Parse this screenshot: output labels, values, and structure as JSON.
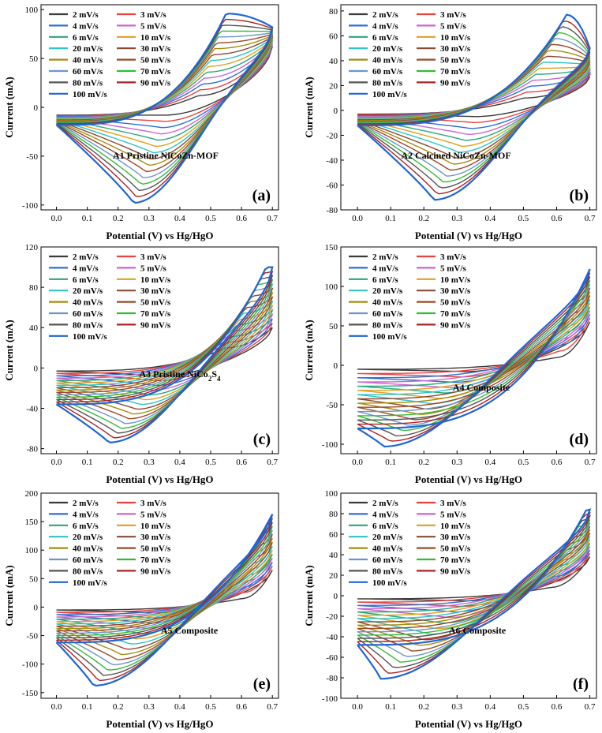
{
  "colors": [
    "#3a3a3a",
    "#e8423f",
    "#2f6fd6",
    "#cc66cc",
    "#2aa77a",
    "#e0a020",
    "#2ec4c4",
    "#8b4a33",
    "#a68c10",
    "#9c4a24",
    "#6f95c8",
    "#33bb33",
    "#555555",
    "#aa2222",
    "#1f66d6"
  ],
  "chart_data": [
    {
      "type": "line",
      "panel_label": "(a)",
      "title": "A1 Pristine NiCoZn-MOF",
      "xlabel": "Potential (V) vs Hg/HgO",
      "ylabel": "Current (mA)",
      "xlim": [
        -0.05,
        0.72
      ],
      "ylim": [
        -105,
        105
      ],
      "xticks": [
        "0.0",
        "0.1",
        "0.2",
        "0.3",
        "0.4",
        "0.5",
        "0.6",
        "0.7"
      ],
      "yticks": [
        "-100",
        "-50",
        "0",
        "50",
        "100"
      ],
      "legend_position": "top-left",
      "legend": [
        "2 mV/s",
        "3 mV/s",
        "4 mV/s",
        "5 mV/s",
        "6 mV/s",
        "10 mV/s",
        "20 mV/s",
        "30 mV/s",
        "40 mV/s",
        "50 mV/s",
        "60 mV/s",
        "70 mV/s",
        "80 mV/s",
        "90 mV/s",
        "100 mV/s"
      ],
      "series_shape": {
        "x_min": 0.0,
        "x_max": 0.7,
        "ox_peak_x": [
          0.46,
          0.55
        ],
        "ox_peak_y": [
          12,
          96
        ],
        "red_peak_x": [
          0.36,
          0.25
        ],
        "red_peak_y": [
          -8,
          -98
        ],
        "end_current": [
          62,
          82
        ],
        "start_current": [
          -8,
          -18
        ],
        "low_branch_offset": 6
      }
    },
    {
      "type": "line",
      "panel_label": "(b)",
      "title": "A2 Calcined NiCoZn-MOF",
      "xlabel": "Potential (V) vs Hg/HgO",
      "ylabel": "Current (mA)",
      "xlim": [
        -0.05,
        0.72
      ],
      "ylim": [
        -80,
        85
      ],
      "xticks": [
        "0.0",
        "0.1",
        "0.2",
        "0.3",
        "0.4",
        "0.5",
        "0.6",
        "0.7"
      ],
      "yticks": [
        "-80",
        "-60",
        "-40",
        "-20",
        "0",
        "20",
        "40",
        "60",
        "80"
      ],
      "legend_position": "top-left",
      "legend": [
        "2 mV/s",
        "3 mV/s",
        "4 mV/s",
        "5 mV/s",
        "6 mV/s",
        "10 mV/s",
        "20 mV/s",
        "30 mV/s",
        "40 mV/s",
        "50 mV/s",
        "60 mV/s",
        "70 mV/s",
        "80 mV/s",
        "90 mV/s",
        "100 mV/s"
      ],
      "series_shape": {
        "x_min": 0.0,
        "x_max": 0.7,
        "ox_peak_x": [
          0.5,
          0.63
        ],
        "ox_peak_y": [
          10,
          77
        ],
        "red_peak_x": [
          0.36,
          0.23
        ],
        "red_peak_y": [
          -5,
          -72
        ],
        "end_current": [
          27,
          50
        ],
        "start_current": [
          -3,
          -12
        ],
        "low_branch_offset": 3
      }
    },
    {
      "type": "line",
      "panel_label": "(c)",
      "title": "A3 Pristine NiCo",
      "title_sub1": "2",
      "title_mid": "S",
      "title_sub2": "4",
      "xlabel": "Potential (V) vs Hg/HgO",
      "ylabel": "Current (mA)",
      "xlim": [
        -0.05,
        0.72
      ],
      "ylim": [
        -85,
        120
      ],
      "xticks": [
        "0.0",
        "0.1",
        "0.2",
        "0.3",
        "0.4",
        "0.5",
        "0.6",
        "0.7"
      ],
      "yticks": [
        "-80",
        "-40",
        "0",
        "40",
        "80",
        "120"
      ],
      "legend_position": "top-left",
      "legend": [
        "2 mV/s",
        "3 mV/s",
        "4 mV/s",
        "5 mV/s",
        "6 mV/s",
        "10 mV/s",
        "20 mV/s",
        "30 mV/s",
        "40 mV/s",
        "50 mV/s",
        "60 mV/s",
        "70 mV/s",
        "80 mV/s",
        "90 mV/s",
        "100 mV/s"
      ],
      "series_shape": {
        "x_min": 0.0,
        "x_max": 0.7,
        "ox_peak_x": [
          0.55,
          0.68
        ],
        "ox_peak_y": [
          20,
          100
        ],
        "red_peak_x": [
          0.35,
          0.17
        ],
        "red_peak_y": [
          -8,
          -74
        ],
        "end_current": [
          40,
          100
        ],
        "start_current": [
          -3,
          -36
        ],
        "low_branch_offset": 4
      }
    },
    {
      "type": "line",
      "panel_label": "(d)",
      "title": "A4 Composite",
      "xlabel": "Potential (V) vs Hg/HgO",
      "ylabel": "Current (mA)",
      "xlim": [
        -0.05,
        0.72
      ],
      "ylim": [
        -112,
        150
      ],
      "xticks": [
        "0.0",
        "0.1",
        "0.2",
        "0.3",
        "0.4",
        "0.5",
        "0.6",
        "0.7"
      ],
      "yticks": [
        "-100",
        "-50",
        "0",
        "50",
        "100",
        "150"
      ],
      "legend_position": "top-left",
      "legend": [
        "2 mV/s",
        "3 mV/s",
        "4 mV/s",
        "5 mV/s",
        "6 mV/s",
        "10 mV/s",
        "20 mV/s",
        "30 mV/s",
        "40 mV/s",
        "50 mV/s",
        "60 mV/s",
        "70 mV/s",
        "80 mV/s",
        "90 mV/s",
        "100 mV/s"
      ],
      "series_shape": {
        "x_min": 0.0,
        "x_max": 0.7,
        "ox_peak_x": [
          0.6,
          0.7
        ],
        "ox_peak_y": [
          10,
          122
        ],
        "red_peak_x": [
          0.33,
          0.08
        ],
        "red_peak_y": [
          -8,
          -103
        ],
        "end_current": [
          55,
          122
        ],
        "start_current": [
          -5,
          -80
        ],
        "low_branch_offset": 4
      }
    },
    {
      "type": "line",
      "panel_label": "(e)",
      "title": "A5 Composite",
      "xlabel": "Potential (V) vs Hg/HgO",
      "ylabel": "Current (mA)",
      "xlim": [
        -0.05,
        0.72
      ],
      "ylim": [
        -160,
        200
      ],
      "xticks": [
        "0.0",
        "0.1",
        "0.2",
        "0.3",
        "0.4",
        "0.5",
        "0.6",
        "0.7"
      ],
      "yticks": [
        "-150",
        "-100",
        "-50",
        "0",
        "50",
        "100",
        "150",
        "200"
      ],
      "legend_position": "top-left",
      "legend": [
        "2 mV/s",
        "3 mV/s",
        "4 mV/s",
        "5 mV/s",
        "6 mV/s",
        "10 mV/s",
        "20 mV/s",
        "30 mV/s",
        "40 mV/s",
        "50 mV/s",
        "60 mV/s",
        "70 mV/s",
        "80 mV/s",
        "90 mV/s",
        "100 mV/s"
      ],
      "series_shape": {
        "x_min": 0.0,
        "x_max": 0.7,
        "ox_peak_x": [
          0.6,
          0.7
        ],
        "ox_peak_y": [
          15,
          163
        ],
        "red_peak_x": [
          0.33,
          0.12
        ],
        "red_peak_y": [
          -10,
          -138
        ],
        "end_current": [
          65,
          163
        ],
        "start_current": [
          -5,
          -62
        ],
        "low_branch_offset": 5
      }
    },
    {
      "type": "line",
      "panel_label": "(f)",
      "title": "A6 Composite",
      "xlabel": "Potential (V) vs Hg/HgO",
      "ylabel": "Current (mA)",
      "xlim": [
        -0.05,
        0.72
      ],
      "ylim": [
        -100,
        100
      ],
      "xticks": [
        "0.0",
        "0.1",
        "0.2",
        "0.3",
        "0.4",
        "0.5",
        "0.6",
        "0.7"
      ],
      "yticks": [
        "-100",
        "-80",
        "-60",
        "-40",
        "-20",
        "0",
        "20",
        "40",
        "60",
        "80",
        "100"
      ],
      "legend_position": "top-left",
      "legend": [
        "2 mV/s",
        "3 mV/s",
        "4 mV/s",
        "5 mV/s",
        "6 mV/s",
        "10 mV/s",
        "20 mV/s",
        "30 mV/s",
        "40 mV/s",
        "50 mV/s",
        "60 mV/s",
        "70 mV/s",
        "80 mV/s",
        "90 mV/s",
        "100 mV/s"
      ],
      "series_shape": {
        "x_min": 0.0,
        "x_max": 0.7,
        "ox_peak_x": [
          0.58,
          0.69
        ],
        "ox_peak_y": [
          8,
          84
        ],
        "red_peak_x": [
          0.33,
          0.07
        ],
        "red_peak_y": [
          -5,
          -81
        ],
        "end_current": [
          38,
          84
        ],
        "start_current": [
          -3,
          -48
        ],
        "low_branch_offset": 3
      }
    }
  ]
}
